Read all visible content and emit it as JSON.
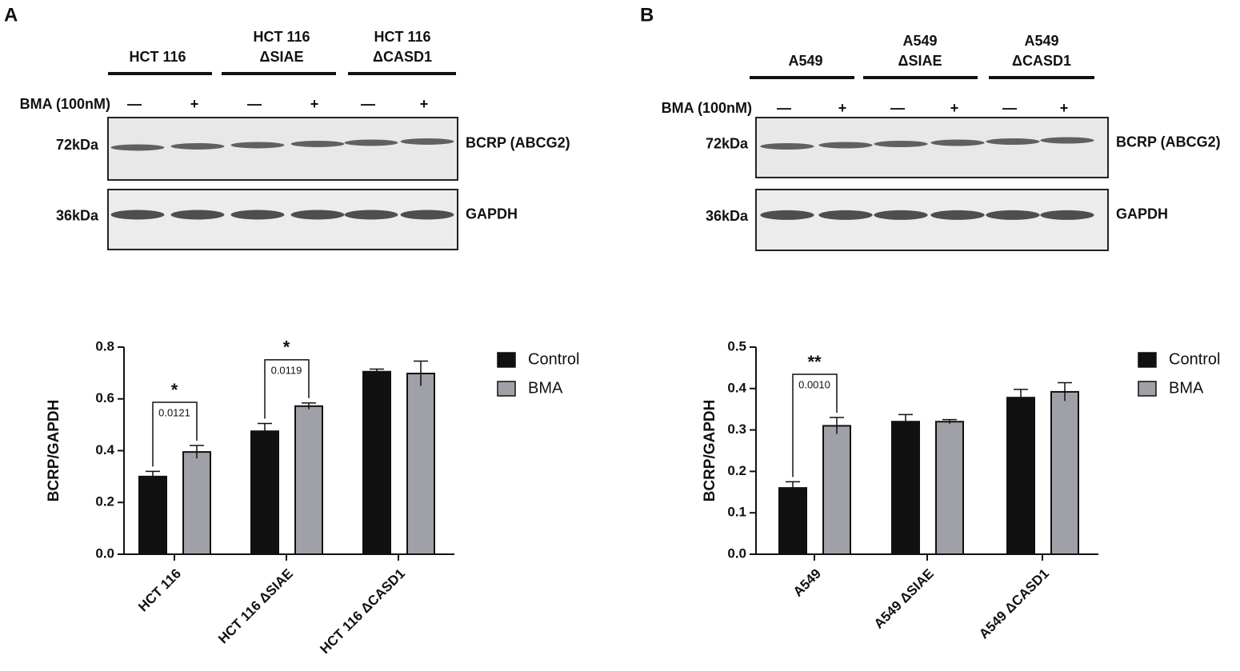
{
  "panels": [
    {
      "label": "A",
      "blot": {
        "groups": [
          [
            "HCT 116"
          ],
          [
            "HCT 116",
            "ΔSIAE"
          ],
          [
            "HCT 116",
            "ΔCASD1"
          ]
        ],
        "treatment_label": "BMA (100nM)",
        "lanes": [
          "—",
          "+",
          "—",
          "+",
          "—",
          "+"
        ],
        "rows": [
          {
            "marker": "72kDa",
            "protein": "BCRP (ABCG2)"
          },
          {
            "marker": "36kDa",
            "protein": "GAPDH"
          }
        ]
      }
    },
    {
      "label": "B",
      "blot": {
        "groups": [
          [
            "A549"
          ],
          [
            "A549",
            "ΔSIAE"
          ],
          [
            "A549",
            "ΔCASD1"
          ]
        ],
        "treatment_label": "BMA (100nM)",
        "lanes": [
          "—",
          "+",
          "—",
          "+",
          "—",
          "+"
        ],
        "rows": [
          {
            "marker": "72kDa",
            "protein": "BCRP (ABCG2)"
          },
          {
            "marker": "36kDa",
            "protein": "GAPDH"
          }
        ]
      }
    }
  ],
  "chart_data": [
    {
      "type": "bar",
      "y_label": "BCRP/GAPDH",
      "categories": [
        "HCT 116",
        "HCT 116 ΔSIAE",
        "HCT 116 ΔCASD1"
      ],
      "series": [
        {
          "name": "Control",
          "color": "#111111",
          "values": [
            0.3,
            0.475,
            0.705
          ],
          "errors": [
            0.02,
            0.03,
            0.01
          ]
        },
        {
          "name": "BMA",
          "color": "#a0a0a8",
          "values": [
            0.395,
            0.572,
            0.698
          ],
          "errors": [
            0.025,
            0.012,
            0.048
          ]
        }
      ],
      "ylim": [
        0,
        0.8
      ],
      "yticks": [
        {
          "value": 0,
          "label": "0.0"
        },
        0.2,
        0.4,
        0.6,
        0.8
      ],
      "annotations": [
        {
          "category": 0,
          "text": "*",
          "p": "0.0121"
        },
        {
          "category": 1,
          "text": "*",
          "p": "0.0119"
        }
      ]
    },
    {
      "type": "bar",
      "y_label": "BCRP/GAPDH",
      "categories": [
        "A549",
        "A549 ΔSIAE",
        "A549 ΔCASD1"
      ],
      "series": [
        {
          "name": "Control",
          "color": "#111111",
          "values": [
            0.16,
            0.32,
            0.378
          ],
          "errors": [
            0.015,
            0.017,
            0.02
          ]
        },
        {
          "name": "BMA",
          "color": "#a0a0a8",
          "values": [
            0.31,
            0.32,
            0.392
          ],
          "errors": [
            0.02,
            0.005,
            0.022
          ]
        }
      ],
      "ylim": [
        0,
        0.5
      ],
      "yticks": [
        {
          "value": 0,
          "label": "0.0"
        },
        0.1,
        0.2,
        0.3,
        0.4,
        0.5
      ],
      "annotations": [
        {
          "category": 0,
          "text": "**",
          "p": "0.0010"
        }
      ]
    }
  ]
}
